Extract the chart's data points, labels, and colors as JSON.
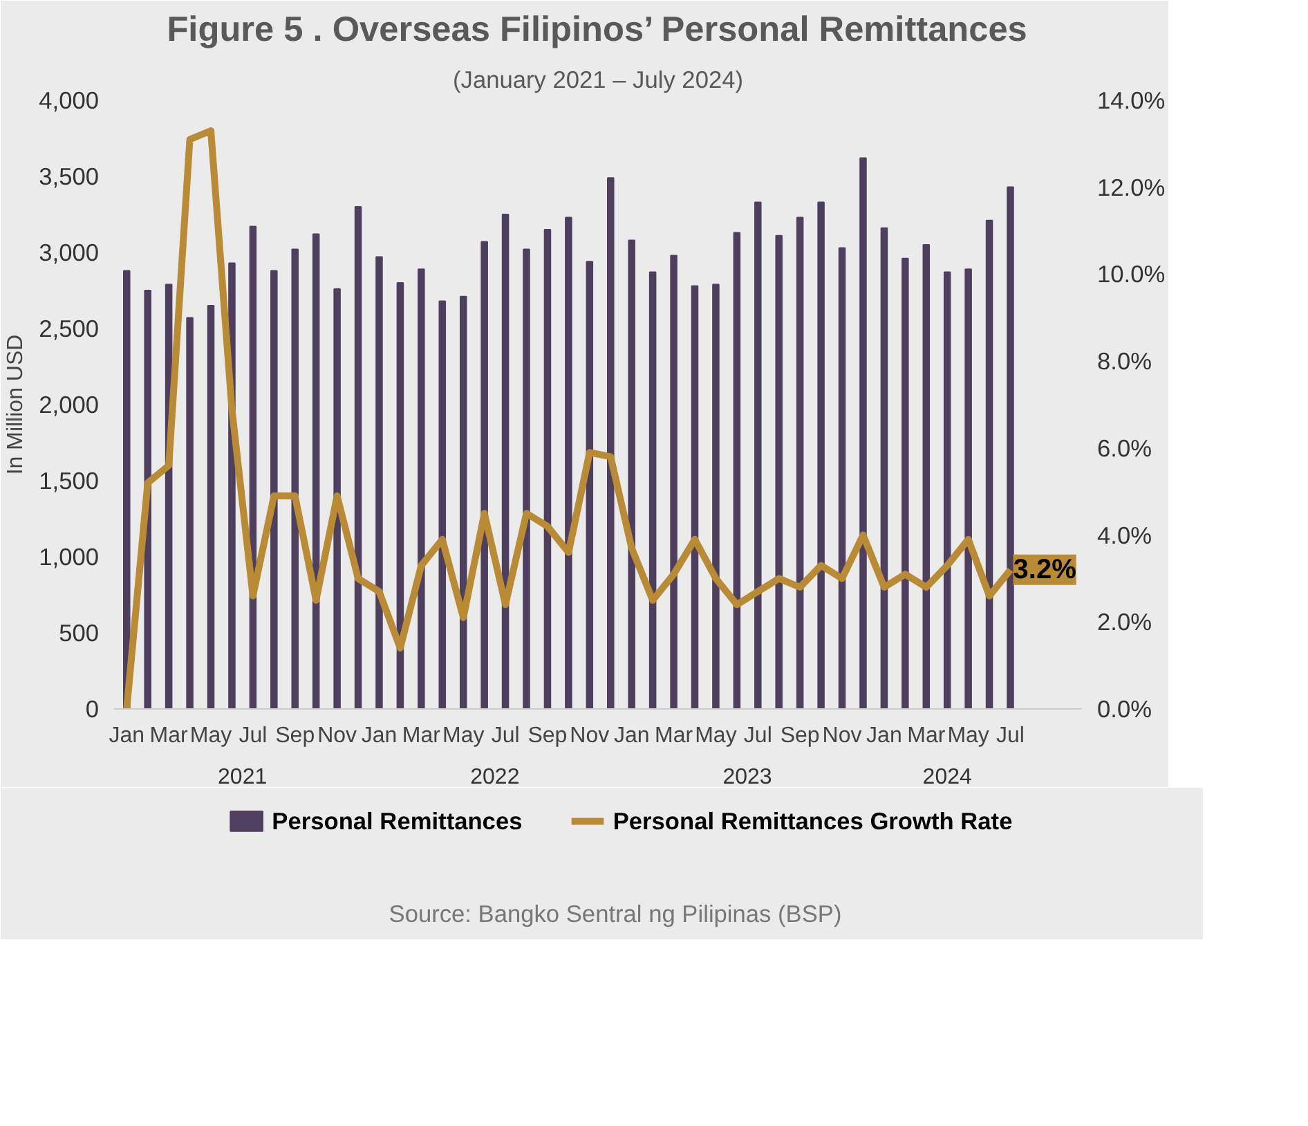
{
  "chart_data": {
    "type": "bar",
    "title": "Figure 5 . Overseas Filipinos’ Personal Remittances",
    "subtitle": "(January 2021 – July 2024)",
    "ylabel": "In Million USD",
    "categories": [
      "Jan",
      null,
      "Mar",
      null,
      "May",
      null,
      "Jul",
      null,
      "Sep",
      null,
      "Nov",
      null,
      "Jan",
      null,
      "Mar",
      null,
      "May",
      null,
      "Jul",
      null,
      "Sep",
      null,
      "Nov",
      null,
      "Jan",
      null,
      "Mar",
      null,
      "May",
      null,
      "Jul",
      null,
      "Sep",
      null,
      "Nov",
      null,
      "Jan",
      null,
      "Mar",
      null,
      "May",
      null,
      "Jul"
    ],
    "series": [
      {
        "name": "Personal Remittances",
        "color": "#4f3f5e",
        "values": [
          2880,
          2750,
          2790,
          2570,
          2650,
          2930,
          3170,
          2880,
          3020,
          3120,
          2760,
          3300,
          2970,
          2800,
          2890,
          2680,
          2710,
          3070,
          3250,
          3020,
          3150,
          3230,
          2940,
          3490,
          3080,
          2870,
          2980,
          2780,
          2790,
          3130,
          3330,
          3110,
          3230,
          3330,
          3030,
          3620,
          3160,
          2960,
          3050,
          2870,
          2890,
          3210,
          3430
        ]
      },
      {
        "name": "Personal Remittances Growth Rate",
        "type": "line",
        "axis": "y2",
        "color": "#b98b35",
        "values": [
          0.0,
          5.2,
          5.6,
          13.1,
          13.3,
          6.9,
          2.6,
          4.9,
          4.9,
          2.5,
          4.9,
          3.0,
          2.7,
          1.4,
          3.3,
          3.9,
          2.1,
          4.5,
          2.4,
          4.5,
          4.2,
          3.6,
          5.9,
          5.8,
          3.7,
          2.5,
          3.1,
          3.9,
          3.0,
          2.4,
          2.7,
          3.0,
          2.8,
          3.3,
          3.0,
          4.0,
          2.8,
          3.1,
          2.8,
          3.3,
          3.9,
          2.6,
          3.2
        ],
        "value_labels": [
          null,
          null,
          null,
          null,
          null,
          null,
          null,
          null,
          null,
          null,
          null,
          null,
          null,
          null,
          null,
          null,
          null,
          null,
          null,
          null,
          null,
          null,
          null,
          null,
          null,
          null,
          null,
          null,
          null,
          null,
          null,
          null,
          null,
          null,
          null,
          null,
          null,
          null,
          null,
          null,
          null,
          null,
          "3.2%"
        ]
      }
    ],
    "ylim": [
      0,
      4000
    ],
    "yticks": [
      0,
      500,
      {
        "value": 1000,
        "label": "1,000"
      },
      {
        "value": 1500,
        "label": "1,500"
      },
      {
        "value": 2000,
        "label": "2,000"
      },
      {
        "value": 2500,
        "label": "2,500"
      },
      {
        "value": 3000,
        "label": "3,000"
      },
      {
        "value": 3500,
        "label": "3,500"
      },
      {
        "value": 4000,
        "label": "4,000"
      }
    ],
    "y2lim": [
      0,
      14
    ],
    "y2ticks": [
      {
        "value": 0,
        "label": "0.0%"
      },
      {
        "value": 2,
        "label": "2.0%"
      },
      {
        "value": 4,
        "label": "4.0%"
      },
      {
        "value": 6,
        "label": "6.0%"
      },
      {
        "value": 8,
        "label": "8.0%"
      },
      {
        "value": 10,
        "label": "10.0%"
      },
      {
        "value": 12,
        "label": "12.0%"
      },
      {
        "value": 14,
        "label": "14.0%"
      }
    ],
    "grid": false,
    "legend": "bottom",
    "annotations": [
      "2021",
      "2022",
      "2023",
      "2024",
      "Source: Bangko Sentral ng Pilipinas (BSP)"
    ]
  }
}
